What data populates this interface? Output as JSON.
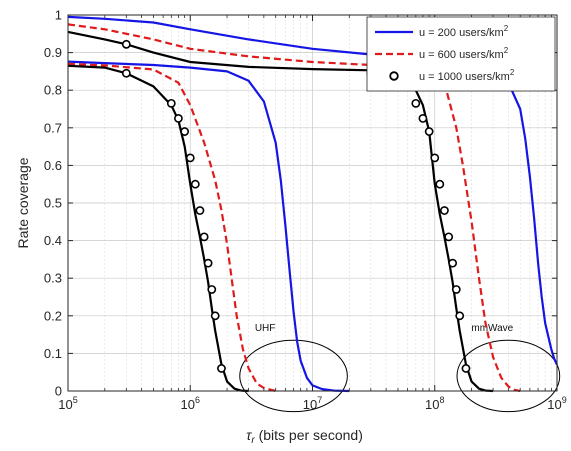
{
  "chart_data": {
    "type": "line",
    "x_scale": "log",
    "xlim": [
      100000,
      1000000000
    ],
    "ylim": [
      0,
      1
    ],
    "xlabel": "τr (bits per second)",
    "ylabel": "Rate coverage",
    "grid": true,
    "legend_position": "top-right",
    "x_tick_labels": [
      {
        "base": "10",
        "exp": "5"
      },
      {
        "base": "10",
        "exp": "6"
      },
      {
        "base": "10",
        "exp": "7"
      },
      {
        "base": "10",
        "exp": "8"
      },
      {
        "base": "10",
        "exp": "9"
      }
    ],
    "y_tick_labels": [
      "0",
      "0.1",
      "0.2",
      "0.3",
      "0.4",
      "0.5",
      "0.6",
      "0.7",
      "0.8",
      "0.9",
      "1"
    ],
    "annotations": [
      {
        "text": "UHF",
        "cx": 7000000,
        "cy": 0.04,
        "rx_decades": 0.44,
        "ry": 0.095
      },
      {
        "text": "mmWave",
        "cx": 400000000,
        "cy": 0.04,
        "rx_decades": 0.42,
        "ry": 0.095
      }
    ],
    "series": [
      {
        "name": "u = 200 users/km",
        "name_sup": "2",
        "color": "#1515e6",
        "dash": "solid",
        "marker": "none",
        "segments": [
          {
            "x": [
              100000,
              200000,
              500000,
              1000000,
              2000000,
              3000000,
              4000000,
              5000000,
              5500000,
              6000000,
              6500000,
              7000000,
              7500000,
              8000000,
              9000000,
              10000000,
              12000000,
              15000000,
              20000000
            ],
            "y": [
              0.876,
              0.872,
              0.867,
              0.86,
              0.85,
              0.825,
              0.77,
              0.66,
              0.56,
              0.44,
              0.32,
              0.21,
              0.13,
              0.08,
              0.035,
              0.015,
              0.005,
              0.001,
              0
            ]
          },
          {
            "x": [
              100000,
              200000,
              500000,
              1000000,
              3000000,
              10000000,
              30000000,
              100000000,
              200000000,
              300000000,
              400000000,
              500000000,
              550000000,
              600000000,
              650000000,
              700000000,
              750000000,
              800000000,
              900000000,
              950000000,
              1000000000
            ],
            "y": [
              0.995,
              0.99,
              0.98,
              0.962,
              0.935,
              0.91,
              0.895,
              0.88,
              0.87,
              0.855,
              0.82,
              0.75,
              0.67,
              0.57,
              0.46,
              0.34,
              0.25,
              0.18,
              0.11,
              0.085,
              0.07
            ]
          }
        ]
      },
      {
        "name": "u = 600 users/km",
        "name_sup": "2",
        "color": "#e01b1b",
        "dash": "dashed",
        "marker": "none",
        "segments": [
          {
            "x": [
              100000,
              200000,
              500000,
              800000,
              1000000,
              1300000,
              1600000,
              1800000,
              2000000,
              2200000,
              2400000,
              2700000,
              3000000,
              3500000,
              4000000,
              5000000
            ],
            "y": [
              0.87,
              0.866,
              0.855,
              0.82,
              0.76,
              0.66,
              0.56,
              0.48,
              0.39,
              0.29,
              0.2,
              0.11,
              0.06,
              0.02,
              0.008,
              0
            ]
          },
          {
            "x": [
              100000,
              200000,
              500000,
              1000000,
              3000000,
              10000000,
              30000000,
              100000000,
              120000000,
              150000000,
              170000000,
              200000000,
              230000000,
              260000000,
              300000000,
              350000000,
              400000000,
              450000000,
              500000000
            ],
            "y": [
              0.975,
              0.962,
              0.935,
              0.91,
              0.89,
              0.875,
              0.867,
              0.85,
              0.82,
              0.7,
              0.6,
              0.45,
              0.3,
              0.18,
              0.09,
              0.035,
              0.012,
              0.003,
              0
            ]
          }
        ]
      },
      {
        "name": "u = 1000 users/km",
        "name_sup": "2",
        "color": "#000000",
        "dash": "solid",
        "marker": "circle",
        "segments": [
          {
            "x": [
              100000,
              200000,
              300000,
              500000,
              700000,
              800000,
              900000,
              1000000,
              1100000,
              1200000,
              1300000,
              1400000,
              1500000,
              1600000,
              1800000,
              2000000,
              2300000,
              2600000,
              3000000
            ],
            "y": [
              0.865,
              0.86,
              0.845,
              0.81,
              0.76,
              0.72,
              0.65,
              0.55,
              0.47,
              0.41,
              0.35,
              0.29,
              0.22,
              0.16,
              0.07,
              0.025,
              0.006,
              0.001,
              0
            ],
            "markers_x": [
              300000,
              700000,
              800000,
              900000,
              1000000,
              1100000,
              1200000,
              1300000,
              1400000,
              1500000,
              1600000,
              1800000
            ],
            "markers_y": [
              0.845,
              0.765,
              0.725,
              0.69,
              0.62,
              0.55,
              0.48,
              0.41,
              0.34,
              0.27,
              0.2,
              0.06
            ]
          },
          {
            "x": [
              100000,
              200000,
              300000,
              500000,
              1000000,
              3000000,
              10000000,
              30000000,
              50000000,
              70000000,
              80000000,
              90000000,
              100000000,
              110000000,
              120000000,
              130000000,
              140000000,
              150000000,
              160000000,
              180000000,
              200000000,
              230000000,
              260000000,
              300000000
            ],
            "y": [
              0.955,
              0.935,
              0.922,
              0.9,
              0.875,
              0.862,
              0.856,
              0.853,
              0.845,
              0.8,
              0.76,
              0.69,
              0.55,
              0.47,
              0.41,
              0.35,
              0.29,
              0.22,
              0.16,
              0.07,
              0.025,
              0.006,
              0.001,
              0
            ],
            "markers_x": [
              300000,
              30000000,
              70000000,
              80000000,
              90000000,
              100000000,
              110000000,
              120000000,
              130000000,
              140000000,
              150000000,
              160000000,
              180000000
            ],
            "markers_y": [
              0.922,
              0.845,
              0.765,
              0.725,
              0.69,
              0.62,
              0.55,
              0.48,
              0.41,
              0.34,
              0.27,
              0.2,
              0.06
            ]
          }
        ]
      }
    ]
  }
}
